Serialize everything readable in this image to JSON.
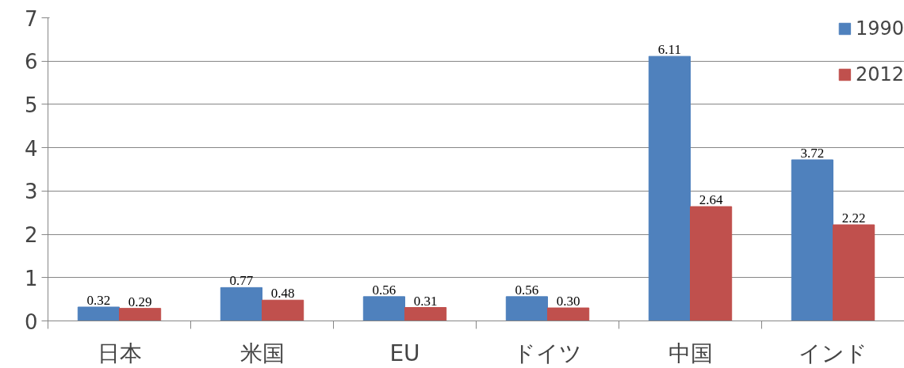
{
  "chart_data": {
    "type": "bar",
    "categories": [
      "日本",
      "米国",
      "EU",
      "ドイツ",
      "中国",
      "インド"
    ],
    "series": [
      {
        "name": "1990",
        "color": "#4f81bd",
        "values": [
          0.32,
          0.77,
          0.56,
          0.56,
          6.11,
          3.72
        ],
        "value_labels": [
          "0.32",
          "0.77",
          "0.56",
          "0.56",
          "6.11",
          "3.72"
        ]
      },
      {
        "name": "2012",
        "color": "#c0504d",
        "values": [
          0.29,
          0.48,
          0.31,
          0.3,
          2.64,
          2.22
        ],
        "value_labels": [
          "0.29",
          "0.48",
          "0.31",
          "0.30",
          "2.64",
          "2.22"
        ]
      }
    ],
    "ylim": [
      0,
      7
    ],
    "yticks": [
      0,
      1,
      2,
      3,
      4,
      5,
      6,
      7
    ],
    "grid": "y",
    "legend": "top right"
  }
}
